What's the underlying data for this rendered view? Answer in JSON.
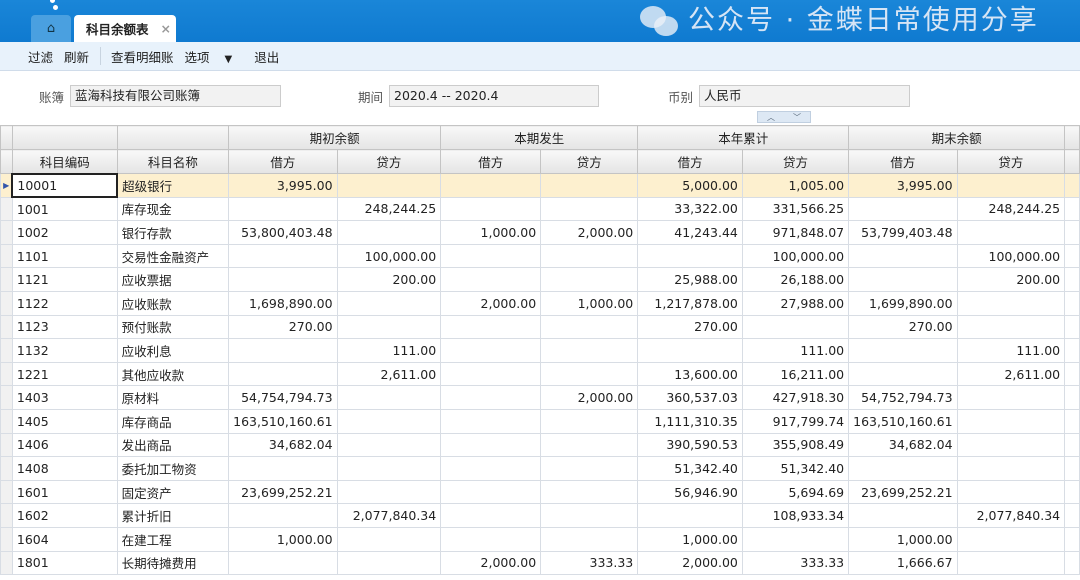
{
  "tabs": {
    "home_icon": "home-icon",
    "active": "科目余额表",
    "close": "×"
  },
  "toolbar": {
    "filter": "过滤",
    "refresh": "刷新",
    "view_detail": "查看明细账",
    "options": "选项",
    "options_arrow": "▼",
    "exit": "退出"
  },
  "filters": {
    "book_label": "账簿",
    "book_value": "蓝海科技有限公司账簿",
    "period_label": "期间",
    "period_value": "2020.4 -- 2020.4",
    "currency_label": "币别",
    "currency_value": "人民币"
  },
  "table": {
    "group_headers": [
      "期初余额",
      "本期发生",
      "本年累计",
      "期末余额"
    ],
    "headers": [
      "科目编码",
      "科目名称",
      "借方",
      "贷方",
      "借方",
      "贷方",
      "借方",
      "贷方",
      "借方",
      "贷方"
    ],
    "rows": [
      [
        "10001",
        "超级银行",
        "3,995.00",
        "",
        "",
        "",
        "5,000.00",
        "1,005.00",
        "3,995.00",
        ""
      ],
      [
        "1001",
        "库存现金",
        "",
        "248,244.25",
        "",
        "",
        "33,322.00",
        "331,566.25",
        "",
        "248,244.25"
      ],
      [
        "1002",
        "银行存款",
        "53,800,403.48",
        "",
        "1,000.00",
        "2,000.00",
        "41,243.44",
        "971,848.07",
        "53,799,403.48",
        ""
      ],
      [
        "1101",
        "交易性金融资产",
        "",
        "100,000.00",
        "",
        "",
        "",
        "100,000.00",
        "",
        "100,000.00"
      ],
      [
        "1121",
        "应收票据",
        "",
        "200.00",
        "",
        "",
        "25,988.00",
        "26,188.00",
        "",
        "200.00"
      ],
      [
        "1122",
        "应收账款",
        "1,698,890.00",
        "",
        "2,000.00",
        "1,000.00",
        "1,217,878.00",
        "27,988.00",
        "1,699,890.00",
        ""
      ],
      [
        "1123",
        "预付账款",
        "270.00",
        "",
        "",
        "",
        "270.00",
        "",
        "270.00",
        ""
      ],
      [
        "1132",
        "应收利息",
        "",
        "111.00",
        "",
        "",
        "",
        "111.00",
        "",
        "111.00"
      ],
      [
        "1221",
        "其他应收款",
        "",
        "2,611.00",
        "",
        "",
        "13,600.00",
        "16,211.00",
        "",
        "2,611.00"
      ],
      [
        "1403",
        "原材料",
        "54,754,794.73",
        "",
        "",
        "2,000.00",
        "360,537.03",
        "427,918.30",
        "54,752,794.73",
        ""
      ],
      [
        "1405",
        "库存商品",
        "163,510,160.61",
        "",
        "",
        "",
        "1,111,310.35",
        "917,799.74",
        "163,510,160.61",
        ""
      ],
      [
        "1406",
        "发出商品",
        "34,682.04",
        "",
        "",
        "",
        "390,590.53",
        "355,908.49",
        "34,682.04",
        ""
      ],
      [
        "1408",
        "委托加工物资",
        "",
        "",
        "",
        "",
        "51,342.40",
        "51,342.40",
        "",
        ""
      ],
      [
        "1601",
        "固定资产",
        "23,699,252.21",
        "",
        "",
        "",
        "56,946.90",
        "5,694.69",
        "23,699,252.21",
        ""
      ],
      [
        "1602",
        "累计折旧",
        "",
        "2,077,840.34",
        "",
        "",
        "",
        "108,933.34",
        "",
        "2,077,840.34"
      ],
      [
        "1604",
        "在建工程",
        "1,000.00",
        "",
        "",
        "",
        "1,000.00",
        "",
        "1,000.00",
        ""
      ],
      [
        "1801",
        "长期待摊费用",
        "",
        "",
        "2,000.00",
        "333.33",
        "2,000.00",
        "333.33",
        "1,666.67",
        ""
      ]
    ]
  },
  "watermark": "公众号 · 金蝶日常使用分享",
  "colors": {
    "accent": "#1a86d8",
    "selected_row": "#fdf0cf"
  }
}
